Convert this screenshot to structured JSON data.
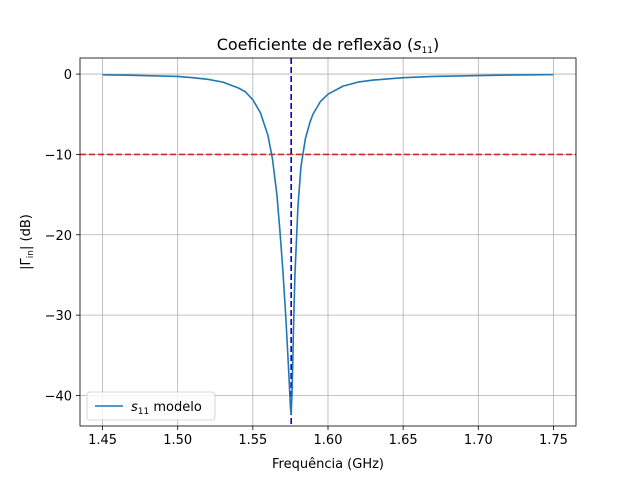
{
  "chart_data": {
    "type": "line",
    "title": "Coeficiente de reflexão (s11)",
    "title_parts": {
      "prefix": "Coeficiente de reflexão (",
      "symbol": "s",
      "subscript": "11",
      "suffix": ")"
    },
    "xlabel": "Frequência (GHz)",
    "ylabel": "|Γin| (dB)",
    "ylabel_parts": {
      "prefix": "|Γ",
      "subscript": "in",
      "suffix": "| (dB)"
    },
    "xlim": [
      1.435,
      1.765
    ],
    "ylim": [
      -43.8,
      2.0
    ],
    "xticks": [
      1.45,
      1.5,
      1.55,
      1.6,
      1.65,
      1.7,
      1.75
    ],
    "xtick_labels": [
      "1.45",
      "1.50",
      "1.55",
      "1.60",
      "1.65",
      "1.70",
      "1.75"
    ],
    "yticks": [
      0,
      -10,
      -20,
      -30,
      -40
    ],
    "ytick_labels": [
      "0",
      "−10",
      "−20",
      "−30",
      "−40"
    ],
    "grid": true,
    "legend_position": "lower-left",
    "series": [
      {
        "name": "s11 modelo",
        "name_parts": {
          "symbol": "s",
          "subscript": "11",
          "suffix": " modelo"
        },
        "color": "#1f77b4",
        "x": [
          1.45,
          1.47,
          1.49,
          1.5,
          1.51,
          1.52,
          1.53,
          1.54,
          1.545,
          1.55,
          1.555,
          1.56,
          1.563,
          1.566,
          1.568,
          1.57,
          1.572,
          1.573,
          1.574,
          1.5745,
          1.575,
          1.5755,
          1.576,
          1.5765,
          1.577,
          1.578,
          1.58,
          1.582,
          1.585,
          1.588,
          1.59,
          1.595,
          1.6,
          1.61,
          1.62,
          1.63,
          1.65,
          1.67,
          1.7,
          1.72,
          1.75
        ],
        "y": [
          -0.1,
          -0.15,
          -0.25,
          -0.3,
          -0.45,
          -0.65,
          -1.0,
          -1.7,
          -2.2,
          -3.2,
          -4.8,
          -7.6,
          -10.5,
          -15.0,
          -19.5,
          -24.5,
          -30.5,
          -34.0,
          -37.5,
          -39.5,
          -41.5,
          -42.3,
          -40.0,
          -36.5,
          -32.0,
          -25.0,
          -16.5,
          -11.5,
          -8.0,
          -6.0,
          -5.0,
          -3.4,
          -2.5,
          -1.5,
          -1.0,
          -0.75,
          -0.45,
          -0.3,
          -0.18,
          -0.12,
          -0.07
        ]
      }
    ],
    "reference_lines": [
      {
        "orientation": "horizontal",
        "value": -10,
        "color": "#d62728",
        "style": "dashed"
      },
      {
        "orientation": "vertical",
        "value": 1.5755,
        "color": "#0000cc",
        "style": "dashed"
      }
    ]
  }
}
